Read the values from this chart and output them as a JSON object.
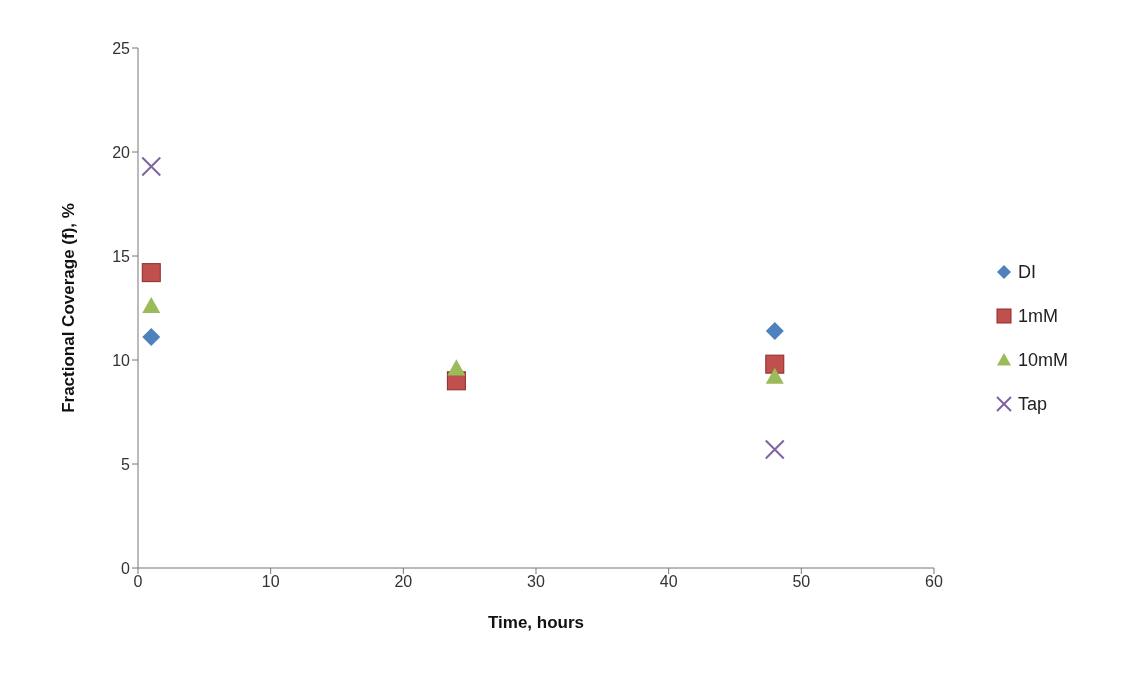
{
  "chart_data": {
    "type": "scatter",
    "xlabel": "Time, hours",
    "ylabel": "Fractional Coverage (f), %",
    "x": [
      1,
      24,
      48
    ],
    "series": [
      {
        "name": "DI",
        "color": "#4f81bd",
        "marker": "diamond",
        "values": [
          11.1,
          null,
          11.4
        ]
      },
      {
        "name": "1mM",
        "color": "#c0504d",
        "marker": "square",
        "values": [
          14.2,
          9.0,
          9.8
        ]
      },
      {
        "name": "10mM",
        "color": "#9bbb59",
        "marker": "triangle",
        "values": [
          12.6,
          9.6,
          9.2
        ]
      },
      {
        "name": "Tap",
        "color": "#8064a2",
        "marker": "cross",
        "values": [
          19.3,
          null,
          5.7
        ]
      }
    ],
    "xlim": [
      0,
      60
    ],
    "xticks": [
      0,
      10,
      20,
      30,
      40,
      50,
      60
    ],
    "ylim": [
      0,
      25
    ],
    "yticks": [
      0,
      5,
      10,
      15,
      20,
      25
    ],
    "grid": false,
    "legend": "right"
  }
}
